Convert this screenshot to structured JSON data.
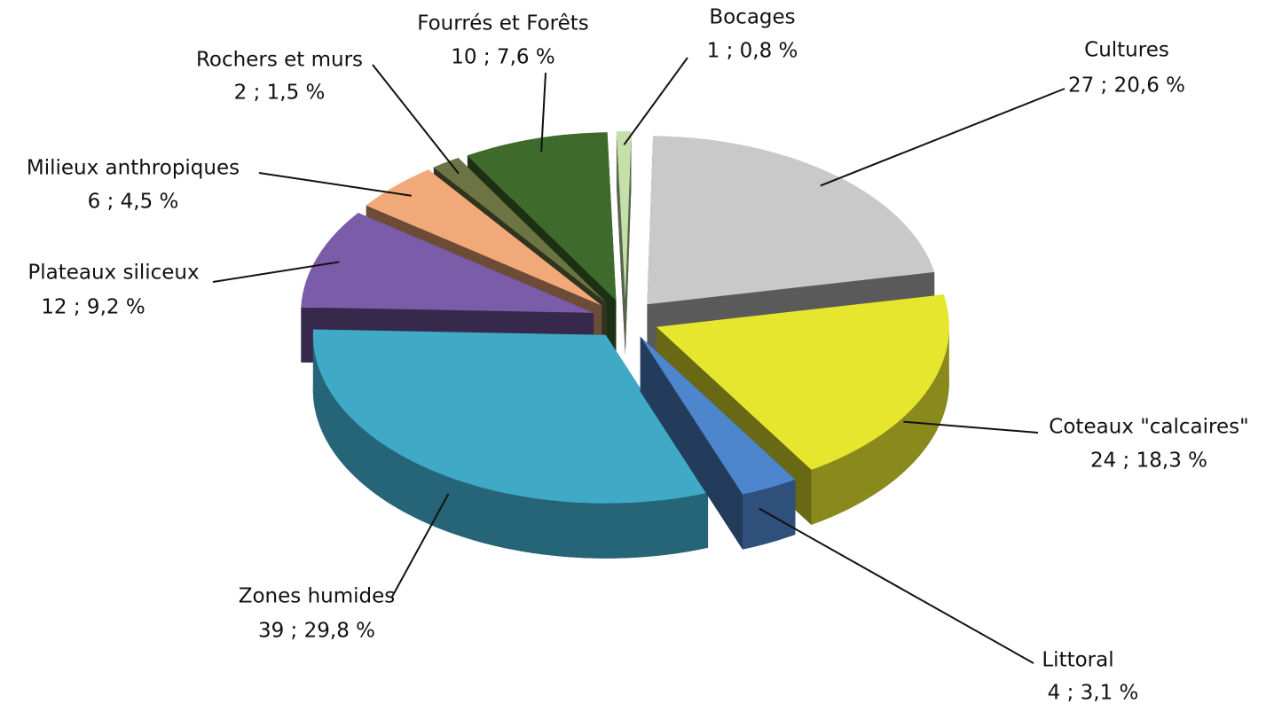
{
  "chart_data": {
    "type": "pie3d",
    "categories": [
      "Bocages",
      "Cultures",
      "Coteaux \"calcaires\"",
      "Littoral",
      "Zones humides",
      "Plateaux siliceux",
      "Milieux anthropiques",
      "Rochers et  murs",
      "Fourrés et Forêts"
    ],
    "values": [
      1,
      27,
      24,
      4,
      39,
      12,
      6,
      2,
      10
    ],
    "value_labels": [
      "1 ; 0,8 %",
      "27 ; 20,6 %",
      "24 ; 18,3 %",
      "4 ; 3,1 %",
      "39 ; 29,8 %",
      "12 ; 9,2 %",
      "6 ; 4,5 %",
      "2 ; 1,5 %",
      "10 ; 7,6 %"
    ],
    "colors": [
      "#c4e0a8",
      "#c9c9c9",
      "#e6e62e",
      "#4d86cc",
      "#3fa9c6",
      "#7b5ca8",
      "#f2a97a",
      "#6b7442",
      "#3e6b2c"
    ]
  }
}
